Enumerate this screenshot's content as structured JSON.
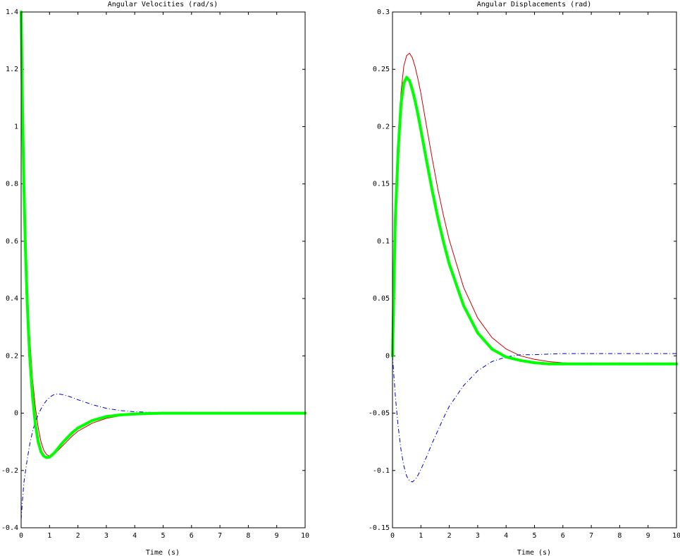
{
  "figure": {
    "colors": {
      "red": "#cc0000",
      "blue": "#0000cc",
      "green": "#00ff00",
      "axes": "#000000",
      "background": "#ffffff"
    }
  },
  "chart_data": [
    {
      "type": "line",
      "title": "Angular Velocities (rad/s)",
      "xlabel": "Time (s)",
      "ylabel": "",
      "xlim": [
        0,
        10
      ],
      "ylim": [
        -0.4,
        1.4
      ],
      "xticks": [
        "0",
        "1",
        "2",
        "3",
        "4",
        "5",
        "6",
        "7",
        "8",
        "9",
        "10"
      ],
      "yticks": [
        "-0.4",
        "-0.2",
        "0",
        "0.2",
        "0.4",
        "0.6",
        "0.8",
        "1",
        "1.2",
        "1.4"
      ],
      "grid": false,
      "series": [
        {
          "style": "solid",
          "color": "red",
          "x": [
            0,
            0.05,
            0.1,
            0.15,
            0.2,
            0.25,
            0.3,
            0.4,
            0.5,
            0.6,
            0.7,
            0.8,
            0.9,
            1.0,
            1.1,
            1.2,
            1.4,
            1.6,
            1.8,
            2.0,
            2.5,
            3.0,
            3.5,
            4.0,
            4.5,
            5.0,
            6.0,
            7.0,
            8.0,
            9.0,
            10.0
          ],
          "y": [
            1.4,
            1.1,
            0.85,
            0.66,
            0.5,
            0.37,
            0.27,
            0.12,
            0.02,
            -0.05,
            -0.1,
            -0.13,
            -0.145,
            -0.15,
            -0.148,
            -0.14,
            -0.12,
            -0.1,
            -0.08,
            -0.063,
            -0.035,
            -0.018,
            -0.009,
            -0.004,
            -0.002,
            -0.001,
            0,
            0,
            0,
            0,
            0
          ]
        },
        {
          "style": "dash-dot",
          "color": "blue",
          "x": [
            0,
            0.05,
            0.1,
            0.2,
            0.3,
            0.4,
            0.5,
            0.6,
            0.7,
            0.8,
            0.9,
            1.0,
            1.1,
            1.2,
            1.3,
            1.5,
            1.7,
            2.0,
            2.5,
            3.0,
            3.5,
            4.0,
            5.0,
            6.0,
            7.0,
            8.0,
            9.0,
            10.0
          ],
          "y": [
            -0.37,
            -0.3,
            -0.24,
            -0.17,
            -0.11,
            -0.065,
            -0.03,
            -0.005,
            0.015,
            0.032,
            0.045,
            0.055,
            0.062,
            0.066,
            0.067,
            0.064,
            0.058,
            0.047,
            0.03,
            0.017,
            0.009,
            0.005,
            0.001,
            0.001,
            0.001,
            0.002,
            0.002,
            0.003
          ]
        },
        {
          "style": "solid-marker",
          "color": "green",
          "x": [
            0,
            0.05,
            0.1,
            0.15,
            0.2,
            0.25,
            0.3,
            0.4,
            0.5,
            0.6,
            0.7,
            0.8,
            0.9,
            1.0,
            1.1,
            1.2,
            1.4,
            1.6,
            1.8,
            2.0,
            2.5,
            3.0,
            3.5,
            4.0,
            4.5,
            5.0,
            6.0,
            7.0,
            8.0,
            9.0,
            10.0
          ],
          "y": [
            1.4,
            1.05,
            0.78,
            0.58,
            0.42,
            0.3,
            0.2,
            0.06,
            -0.04,
            -0.1,
            -0.135,
            -0.15,
            -0.155,
            -0.153,
            -0.145,
            -0.135,
            -0.11,
            -0.088,
            -0.068,
            -0.052,
            -0.026,
            -0.012,
            -0.006,
            -0.003,
            -0.001,
            0,
            0,
            0,
            0,
            0,
            0
          ]
        }
      ]
    },
    {
      "type": "line",
      "title": "Angular Displacements (rad)",
      "xlabel": "Time (s)",
      "ylabel": "",
      "xlim": [
        0,
        10
      ],
      "ylim": [
        -0.15,
        0.3
      ],
      "xticks": [
        "0",
        "1",
        "2",
        "3",
        "4",
        "5",
        "6",
        "7",
        "8",
        "9",
        "10"
      ],
      "yticks": [
        "-0.15",
        "-0.1",
        "-0.05",
        "0",
        "0.05",
        "0.1",
        "0.15",
        "0.2",
        "0.25",
        "0.3"
      ],
      "grid": false,
      "series": [
        {
          "style": "solid",
          "color": "red",
          "x": [
            0,
            0.1,
            0.2,
            0.3,
            0.4,
            0.5,
            0.6,
            0.7,
            0.8,
            0.9,
            1.0,
            1.2,
            1.4,
            1.6,
            1.8,
            2.0,
            2.5,
            3.0,
            3.5,
            4.0,
            4.5,
            5.0,
            5.5,
            6.0,
            7.0,
            8.0,
            9.0,
            10.0
          ],
          "y": [
            0,
            0.12,
            0.19,
            0.23,
            0.253,
            0.262,
            0.264,
            0.26,
            0.252,
            0.241,
            0.229,
            0.2,
            0.172,
            0.145,
            0.122,
            0.101,
            0.06,
            0.033,
            0.016,
            0.006,
            0.0,
            -0.003,
            -0.005,
            -0.006,
            -0.007,
            -0.007,
            -0.007,
            -0.007
          ]
        },
        {
          "style": "dash-dot",
          "color": "blue",
          "x": [
            0,
            0.1,
            0.2,
            0.3,
            0.4,
            0.5,
            0.6,
            0.7,
            0.8,
            0.9,
            1.0,
            1.2,
            1.4,
            1.6,
            1.8,
            2.0,
            2.5,
            3.0,
            3.5,
            4.0,
            4.5,
            5.0,
            6.0,
            7.0,
            8.0,
            9.0,
            10.0
          ],
          "y": [
            0,
            -0.035,
            -0.062,
            -0.082,
            -0.096,
            -0.105,
            -0.109,
            -0.11,
            -0.108,
            -0.104,
            -0.099,
            -0.088,
            -0.076,
            -0.065,
            -0.054,
            -0.044,
            -0.026,
            -0.013,
            -0.005,
            -0.001,
            0.001,
            0.001,
            0.002,
            0.002,
            0.002,
            0.002,
            0.002
          ]
        },
        {
          "style": "solid-marker",
          "color": "green",
          "x": [
            0,
            0.1,
            0.2,
            0.3,
            0.4,
            0.5,
            0.6,
            0.7,
            0.8,
            0.9,
            1.0,
            1.2,
            1.4,
            1.6,
            1.8,
            2.0,
            2.5,
            3.0,
            3.5,
            4.0,
            4.5,
            5.0,
            5.5,
            6.0,
            7.0,
            8.0,
            9.0,
            10.0
          ],
          "y": [
            0,
            0.12,
            0.18,
            0.22,
            0.238,
            0.243,
            0.24,
            0.232,
            0.222,
            0.21,
            0.197,
            0.17,
            0.144,
            0.12,
            0.099,
            0.08,
            0.044,
            0.02,
            0.006,
            -0.001,
            -0.004,
            -0.006,
            -0.007,
            -0.007,
            -0.007,
            -0.007,
            -0.007,
            -0.007
          ]
        }
      ]
    }
  ]
}
